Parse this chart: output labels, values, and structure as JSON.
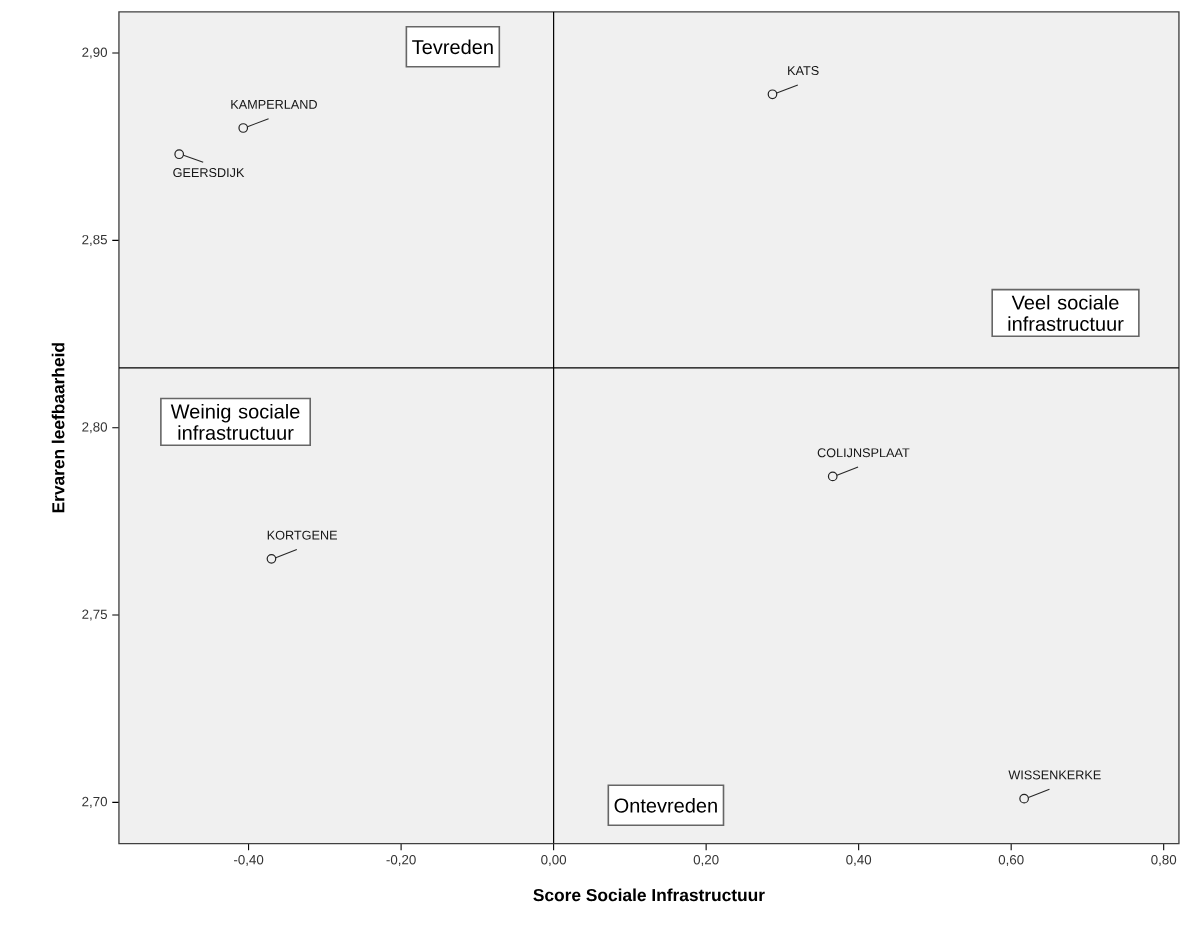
{
  "chart_data": {
    "type": "scatter",
    "xlabel": "Score Sociale Infrastructuur",
    "ylabel": "Ervaren leefbaarheid",
    "x": [
      -0.407,
      -0.491,
      -0.37,
      0.287,
      0.366,
      0.617
    ],
    "series": [
      {
        "color": "#222222",
        "values": [
          2.88,
          2.873,
          2.765,
          2.889,
          2.787,
          2.701
        ]
      }
    ],
    "marker": "circle",
    "grid": false,
    "xlim": [
      -0.57,
      0.82
    ],
    "ylim": [
      2.689,
      2.911
    ],
    "xticks": [
      {
        "value": -0.4,
        "label": "-0,40"
      },
      {
        "value": -0.2,
        "label": "-0,20"
      },
      {
        "value": 0,
        "label": "0,00"
      },
      {
        "value": 0.2,
        "label": "0,20"
      },
      {
        "value": 0.4,
        "label": "0,40"
      },
      {
        "value": 0.6,
        "label": "0,60"
      },
      {
        "value": 0.8,
        "label": "0,80"
      }
    ],
    "yticks": [
      {
        "value": 2.7,
        "label": "2,70"
      },
      {
        "value": 2.75,
        "label": "2,75"
      },
      {
        "value": 2.8,
        "label": "2,80"
      },
      {
        "value": 2.85,
        "label": "2,85"
      },
      {
        "value": 2.9,
        "label": "2,90"
      }
    ],
    "ref_lines": [
      {
        "axis": "y",
        "value": 2.816,
        "color": "#000000"
      },
      {
        "axis": "x",
        "value": 0,
        "color": "#000000"
      }
    ],
    "annotations": [
      {
        "text": "KAMPERLAND",
        "x": -0.407,
        "y": 2.88
      },
      {
        "text": "GEERSDIJK",
        "x": -0.491,
        "y": 2.873
      },
      {
        "text": "KORTGENE",
        "x": -0.37,
        "y": 2.765
      },
      {
        "text": "KATS",
        "x": 0.287,
        "y": 2.889
      },
      {
        "text": "COLIJNSPLAAT",
        "x": 0.366,
        "y": 2.787
      },
      {
        "text": "WISSENKERKE",
        "x": 0.617,
        "y": 2.701
      },
      "Tevreden",
      "Veel sociale infrastructuur",
      "Weinig sociale infrastructuur",
      "Ontevreden"
    ]
  }
}
